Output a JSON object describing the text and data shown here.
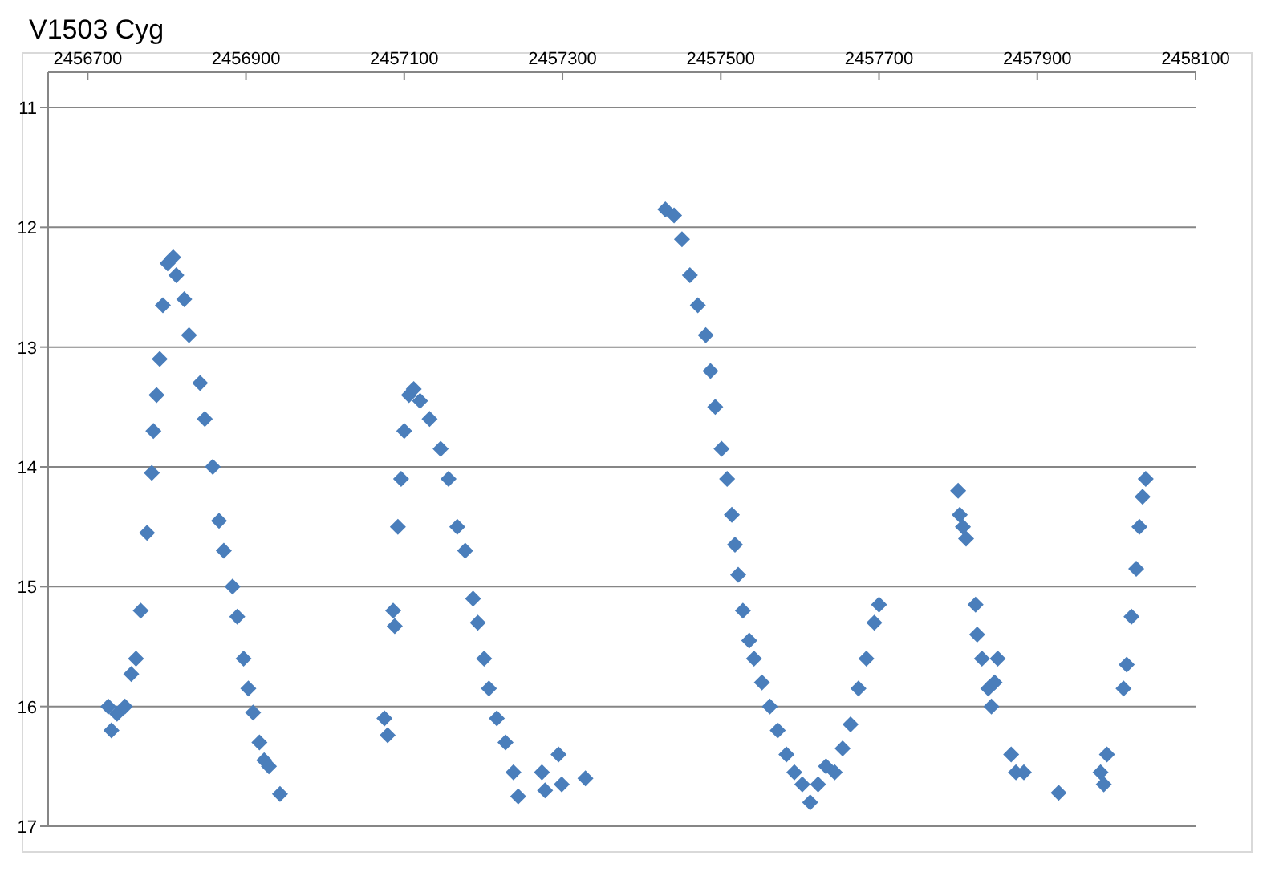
{
  "chart_data": {
    "type": "scatter",
    "title": "V1503 Cyg",
    "xlim": [
      2456650,
      2458100
    ],
    "xticks": [
      2456700,
      2456900,
      2457100,
      2457300,
      2457500,
      2457700,
      2457900,
      2458100
    ],
    "ylim": [
      17,
      11
    ],
    "yticks": [
      11,
      12,
      13,
      14,
      15,
      16,
      17
    ],
    "grid": "y",
    "marker": "diamond",
    "series": [
      {
        "color": "#4a7ebb",
        "x": [
          2456726,
          2456730,
          2456737,
          2456747,
          2456755,
          2456761,
          2456767,
          2456775,
          2456781,
          2456783,
          2456787,
          2456791,
          2456795,
          2456801,
          2456808,
          2456812,
          2456822,
          2456828,
          2456842,
          2456848,
          2456858,
          2456866,
          2456872,
          2456883,
          2456889,
          2456897,
          2456903,
          2456909,
          2456917,
          2456923,
          2456929,
          2456943,
          2457075,
          2457079,
          2457086,
          2457088,
          2457092,
          2457096,
          2457100,
          2457106,
          2457112,
          2457120,
          2457132,
          2457146,
          2457156,
          2457167,
          2457177,
          2457187,
          2457193,
          2457201,
          2457207,
          2457217,
          2457228,
          2457238,
          2457244,
          2457274,
          2457278,
          2457295,
          2457299,
          2457329,
          2457430,
          2457441,
          2457451,
          2457461,
          2457471,
          2457481,
          2457487,
          2457493,
          2457501,
          2457508,
          2457514,
          2457518,
          2457522,
          2457528,
          2457536,
          2457542,
          2457552,
          2457562,
          2457572,
          2457583,
          2457593,
          2457603,
          2457613,
          2457623,
          2457633,
          2457644,
          2457654,
          2457664,
          2457674,
          2457684,
          2457694,
          2457700,
          2457800,
          2457802,
          2457806,
          2457810,
          2457822,
          2457824,
          2457830,
          2457838,
          2457842,
          2457846,
          2457850,
          2457867,
          2457873,
          2457883,
          2457927,
          2457980,
          2457984,
          2457988,
          2458009,
          2458013,
          2458019,
          2458025,
          2458029,
          2458033,
          2458037
        ],
        "values": [
          16.0,
          16.2,
          16.06,
          16.0,
          15.73,
          15.6,
          15.2,
          14.55,
          14.05,
          13.7,
          13.4,
          13.1,
          12.65,
          12.3,
          12.25,
          12.4,
          12.6,
          12.9,
          13.3,
          13.6,
          14.0,
          14.45,
          14.7,
          15.0,
          15.25,
          15.6,
          15.85,
          16.05,
          16.3,
          16.45,
          16.5,
          16.73,
          16.1,
          16.24,
          15.2,
          15.33,
          14.5,
          14.1,
          13.7,
          13.4,
          13.35,
          13.45,
          13.6,
          13.85,
          14.1,
          14.5,
          14.7,
          15.1,
          15.3,
          15.6,
          15.85,
          16.1,
          16.3,
          16.55,
          16.75,
          16.55,
          16.7,
          16.4,
          16.65,
          16.6,
          11.85,
          11.9,
          12.1,
          12.4,
          12.65,
          12.9,
          13.2,
          13.5,
          13.85,
          14.1,
          14.4,
          14.65,
          14.9,
          15.2,
          15.45,
          15.6,
          15.8,
          16.0,
          16.2,
          16.4,
          16.55,
          16.65,
          16.8,
          16.65,
          16.5,
          16.55,
          16.35,
          16.15,
          15.85,
          15.6,
          15.3,
          15.15,
          14.2,
          14.4,
          14.5,
          14.6,
          15.15,
          15.4,
          15.6,
          15.85,
          16.0,
          15.8,
          15.6,
          16.4,
          16.55,
          16.55,
          16.72,
          16.55,
          16.65,
          16.4,
          15.85,
          15.65,
          15.25,
          14.85,
          14.5,
          14.25,
          14.1
        ]
      }
    ]
  }
}
